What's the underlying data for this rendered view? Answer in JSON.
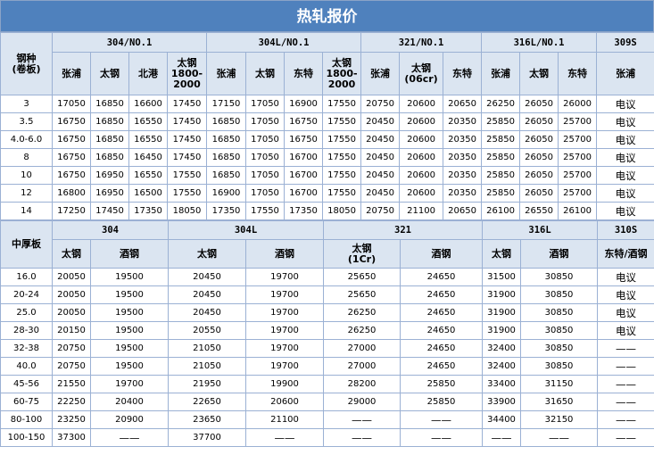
{
  "title": "热轧报价",
  "coil": {
    "corner": "钢种\n(卷板)",
    "grades": [
      {
        "label": "304/NO.1"
      },
      {
        "label": "304L/NO.1"
      },
      {
        "label": "321/NO.1"
      },
      {
        "label": "316L/NO.1"
      },
      {
        "label": "309S"
      }
    ],
    "mills": [
      "张浦",
      "太钢",
      "北港",
      "太钢\n1800-\n2000",
      "张浦",
      "太钢",
      "东特",
      "太钢\n1800-\n2000",
      "张浦",
      "太钢\n(06cr)",
      "东特",
      "张浦",
      "太钢",
      "东特",
      "张浦"
    ],
    "rows": [
      {
        "t": "3",
        "v": [
          "17050",
          "16850",
          "16600",
          "17450",
          "17150",
          "17050",
          "16900",
          "17550",
          "20750",
          "20600",
          "20650",
          "26250",
          "26050",
          "26000",
          "电议"
        ]
      },
      {
        "t": "3.5",
        "v": [
          "16750",
          "16850",
          "16550",
          "17450",
          "16850",
          "17050",
          "16750",
          "17550",
          "20450",
          "20600",
          "20350",
          "25850",
          "26050",
          "25700",
          "电议"
        ]
      },
      {
        "t": "4.0-6.0",
        "v": [
          "16750",
          "16850",
          "16550",
          "17450",
          "16850",
          "17050",
          "16750",
          "17550",
          "20450",
          "20600",
          "20350",
          "25850",
          "26050",
          "25700",
          "电议"
        ]
      },
      {
        "t": "8",
        "v": [
          "16750",
          "16850",
          "16450",
          "17450",
          "16850",
          "17050",
          "16700",
          "17550",
          "20450",
          "20600",
          "20350",
          "25850",
          "26050",
          "25700",
          "电议"
        ]
      },
      {
        "t": "10",
        "v": [
          "16750",
          "16950",
          "16550",
          "17550",
          "16850",
          "17050",
          "16700",
          "17550",
          "20450",
          "20600",
          "20350",
          "25850",
          "26050",
          "25700",
          "电议"
        ]
      },
      {
        "t": "12",
        "v": [
          "16800",
          "16950",
          "16500",
          "17550",
          "16900",
          "17050",
          "16700",
          "17550",
          "20450",
          "20600",
          "20350",
          "25850",
          "26050",
          "25700",
          "电议"
        ]
      },
      {
        "t": "14",
        "v": [
          "17250",
          "17450",
          "17350",
          "18050",
          "17350",
          "17550",
          "17350",
          "18050",
          "20750",
          "21100",
          "20650",
          "26100",
          "26550",
          "26100",
          "电议"
        ]
      }
    ]
  },
  "plate": {
    "corner": "中厚板",
    "grades": [
      {
        "label": "304"
      },
      {
        "label": "304L"
      },
      {
        "label": "321"
      },
      {
        "label": "316L"
      },
      {
        "label": "310S"
      }
    ],
    "mills": [
      "太钢",
      "酒钢",
      "太钢",
      "酒钢",
      "太钢\n(1Cr)",
      "酒钢",
      "太钢",
      "酒钢",
      "东特/酒钢"
    ],
    "rows": [
      {
        "t": "16.0",
        "v": [
          "20050",
          "19500",
          "20450",
          "19700",
          "25650",
          "24650",
          "31500",
          "30850",
          "电议"
        ]
      },
      {
        "t": "20-24",
        "v": [
          "20050",
          "19500",
          "20450",
          "19700",
          "25650",
          "24650",
          "31900",
          "30850",
          "电议"
        ]
      },
      {
        "t": "25.0",
        "v": [
          "20050",
          "19500",
          "20450",
          "19700",
          "26250",
          "24650",
          "31900",
          "30850",
          "电议"
        ]
      },
      {
        "t": "28-30",
        "v": [
          "20150",
          "19500",
          "20550",
          "19700",
          "26250",
          "24650",
          "31900",
          "30850",
          "电议"
        ]
      },
      {
        "t": "32-38",
        "v": [
          "20750",
          "19500",
          "21050",
          "19700",
          "27000",
          "24650",
          "32400",
          "30850",
          "——"
        ]
      },
      {
        "t": "40.0",
        "v": [
          "20750",
          "19500",
          "21050",
          "19700",
          "27000",
          "24650",
          "32400",
          "30850",
          "——"
        ]
      },
      {
        "t": "45-56",
        "v": [
          "21550",
          "19700",
          "21950",
          "19900",
          "28200",
          "25850",
          "33400",
          "31150",
          "——"
        ]
      },
      {
        "t": "60-75",
        "v": [
          "22250",
          "20400",
          "22650",
          "20600",
          "29000",
          "25850",
          "33900",
          "31650",
          "——"
        ]
      },
      {
        "t": "80-100",
        "v": [
          "23250",
          "20900",
          "23650",
          "21100",
          "——",
          "——",
          "34400",
          "32150",
          "——"
        ]
      },
      {
        "t": "100-150",
        "v": [
          "37300",
          "——",
          "37700",
          "——",
          "——",
          "——",
          "——",
          "——",
          "——"
        ]
      }
    ]
  }
}
